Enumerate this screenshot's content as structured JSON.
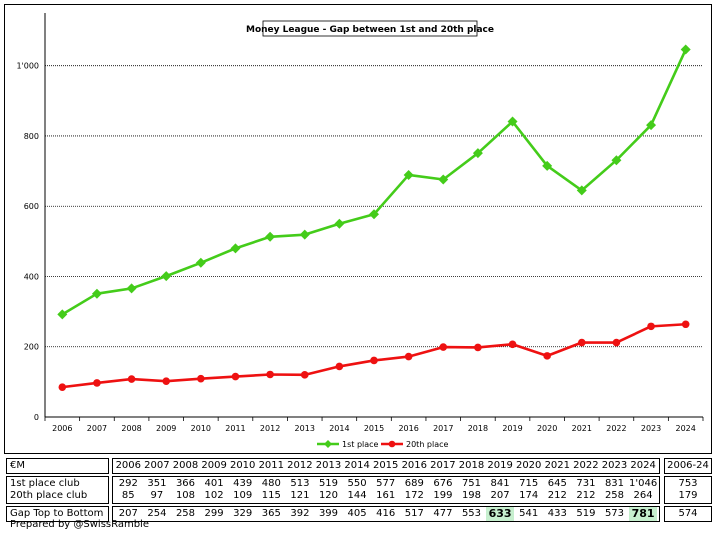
{
  "chart_data": {
    "type": "line",
    "title": "Money League - Gap between 1st and 20th place",
    "x": [
      "2006",
      "2007",
      "2008",
      "2009",
      "2010",
      "2011",
      "2012",
      "2013",
      "2014",
      "2015",
      "2016",
      "2017",
      "2018",
      "2019",
      "2020",
      "2021",
      "2022",
      "2023",
      "2024"
    ],
    "yticks": [
      "0",
      "200",
      "400",
      "600",
      "800",
      "1'000"
    ],
    "ylim": [
      0,
      1150
    ],
    "grid": "horizontal dotted",
    "legend_position": "bottom-center",
    "series": [
      {
        "name": "1st place",
        "color": "#44cc1a",
        "marker": "diamond",
        "values": [
          292,
          351,
          366,
          401,
          439,
          480,
          513,
          519,
          550,
          577,
          689,
          676,
          751,
          841,
          715,
          645,
          731,
          831,
          1046
        ]
      },
      {
        "name": "20th place",
        "color": "#ee1111",
        "marker": "circle",
        "values": [
          85,
          97,
          108,
          102,
          109,
          115,
          121,
          120,
          144,
          161,
          172,
          199,
          198,
          207,
          174,
          212,
          212,
          258,
          264
        ]
      }
    ]
  },
  "table": {
    "unit_label": "€M",
    "years": [
      "2006",
      "2007",
      "2008",
      "2009",
      "2010",
      "2011",
      "2012",
      "2013",
      "2014",
      "2015",
      "2016",
      "2017",
      "2018",
      "2019",
      "2020",
      "2021",
      "2022",
      "2023",
      "2024"
    ],
    "period_label": "2006-24",
    "rows": [
      {
        "label": "1st place club",
        "values": [
          "292",
          "351",
          "366",
          "401",
          "439",
          "480",
          "513",
          "519",
          "550",
          "577",
          "689",
          "676",
          "751",
          "841",
          "715",
          "645",
          "731",
          "831",
          "1'046"
        ],
        "summary": "753"
      },
      {
        "label": "20th place club",
        "values": [
          "85",
          "97",
          "108",
          "102",
          "109",
          "115",
          "121",
          "120",
          "144",
          "161",
          "172",
          "199",
          "198",
          "207",
          "174",
          "212",
          "212",
          "258",
          "264"
        ],
        "summary": "179"
      }
    ],
    "gap_row": {
      "label": "Gap Top to Bottom",
      "values": [
        "207",
        "254",
        "258",
        "299",
        "329",
        "365",
        "392",
        "399",
        "405",
        "416",
        "517",
        "477",
        "553",
        "633",
        "541",
        "433",
        "519",
        "573",
        "781"
      ],
      "summary": "574",
      "highlight_indices": [
        13,
        18
      ],
      "highlight_color": "#c6efce"
    }
  },
  "credit": "Prepared by @SwissRamble"
}
